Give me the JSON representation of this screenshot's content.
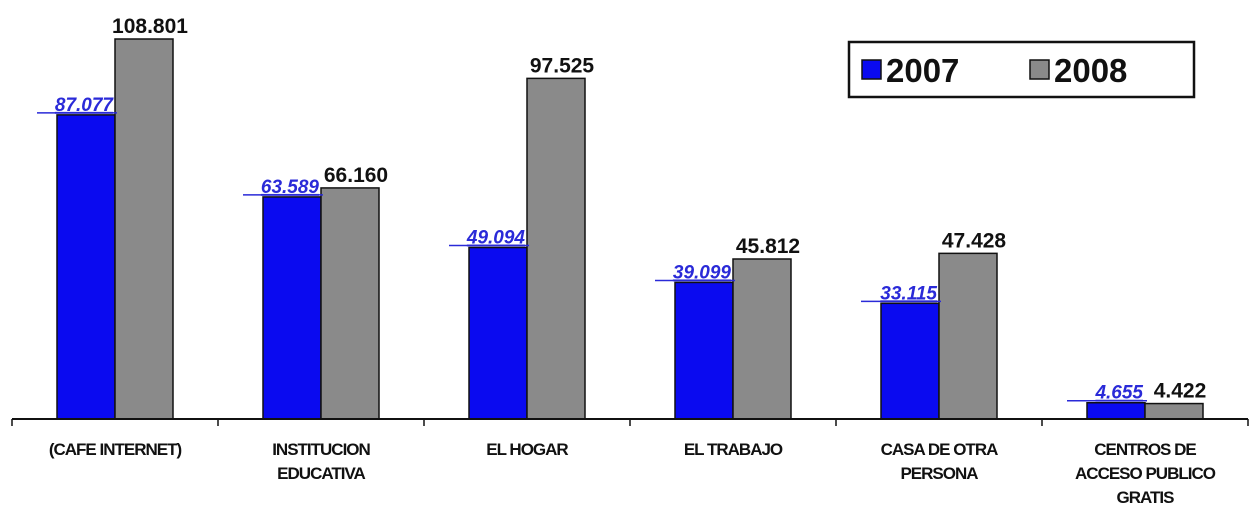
{
  "chart_data": {
    "type": "bar",
    "categories": [
      "(CAFE INTERNET)",
      "INSTITUCION EDUCATIVA",
      "EL HOGAR",
      "EL TRABAJO",
      "CASA DE OTRA PERSONA",
      "CENTROS DE ACCESO PUBLICO GRATIS"
    ],
    "category_lines": [
      [
        "(CAFE INTERNET)"
      ],
      [
        "INSTITUCION",
        "EDUCATIVA"
      ],
      [
        "EL HOGAR"
      ],
      [
        "EL TRABAJO"
      ],
      [
        "CASA DE OTRA",
        "PERSONA"
      ],
      [
        "CENTROS DE",
        "ACCESO PUBLICO",
        "GRATIS"
      ]
    ],
    "series": [
      {
        "name": "2007",
        "values": [
          87077,
          63589,
          49094,
          39099,
          33115,
          4655
        ],
        "labels": [
          "87.077",
          "63.589",
          "49.094",
          "39.099",
          "33.115",
          "4.655"
        ],
        "color": "#0a0af0"
      },
      {
        "name": "2008",
        "values": [
          108801,
          66160,
          97525,
          45812,
          47428,
          4422
        ],
        "labels": [
          "108.801",
          "66.160",
          "97.525",
          "45.812",
          "47.428",
          "4.422"
        ],
        "color": "#8a8a8a"
      }
    ],
    "ylim": [
      0,
      108801
    ],
    "grid": false,
    "legend_position": "top-right",
    "title": "",
    "xlabel": "",
    "ylabel": ""
  }
}
